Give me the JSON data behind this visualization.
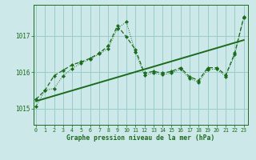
{
  "title": "Graphe pression niveau de la mer (hPa)",
  "bg_color": "#cce8e8",
  "grid_color": "#99cccc",
  "line_color": "#1a6b1a",
  "x_ticks": [
    0,
    1,
    2,
    3,
    4,
    5,
    6,
    7,
    8,
    9,
    10,
    11,
    12,
    13,
    14,
    15,
    16,
    17,
    18,
    19,
    20,
    21,
    22,
    23
  ],
  "y_ticks": [
    1015,
    1016,
    1017
  ],
  "ylim": [
    1014.55,
    1017.85
  ],
  "xlim": [
    -0.3,
    23.5
  ],
  "dotted_x": [
    0,
    1,
    2,
    3,
    4,
    5,
    6,
    7,
    8,
    9,
    10,
    11,
    12,
    13,
    14,
    15,
    16,
    17,
    18,
    19,
    20,
    21,
    22,
    23
  ],
  "dotted_y": [
    1015.05,
    1015.5,
    1015.55,
    1015.9,
    1016.1,
    1016.25,
    1016.35,
    1016.5,
    1016.65,
    1017.2,
    1017.38,
    1016.55,
    1015.92,
    1015.97,
    1015.93,
    1015.97,
    1016.08,
    1015.82,
    1015.72,
    1016.07,
    1016.08,
    1015.88,
    1016.48,
    1017.5
  ],
  "dashed_x": [
    0,
    1,
    2,
    3,
    4,
    5,
    6,
    7,
    8,
    9,
    10,
    11,
    12,
    13,
    14,
    15,
    16,
    17,
    18,
    19,
    20,
    21,
    22,
    23
  ],
  "dashed_y": [
    1015.25,
    1015.5,
    1015.9,
    1016.05,
    1016.2,
    1016.28,
    1016.38,
    1016.52,
    1016.72,
    1017.27,
    1016.97,
    1016.62,
    1015.97,
    1016.02,
    1015.97,
    1016.02,
    1016.12,
    1015.87,
    1015.77,
    1016.12,
    1016.12,
    1015.92,
    1016.52,
    1017.52
  ],
  "trend_x": [
    0,
    23
  ],
  "trend_y": [
    1015.2,
    1016.88
  ]
}
